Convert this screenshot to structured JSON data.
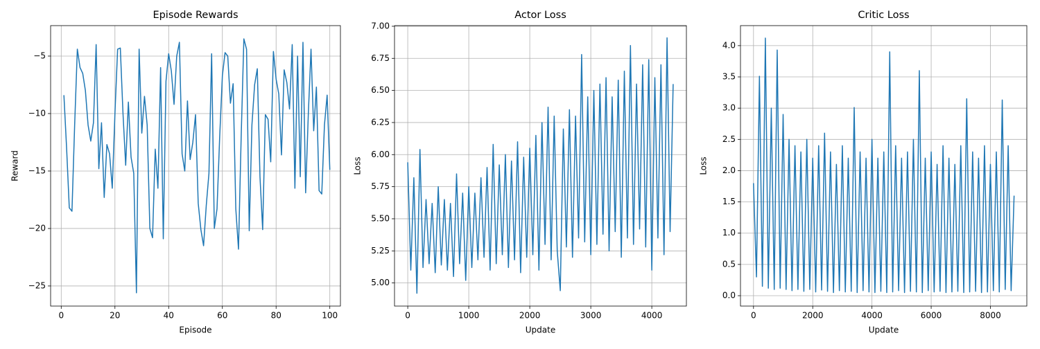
{
  "chart_data": [
    {
      "type": "line",
      "title": "Episode Rewards",
      "x_label": "Episode",
      "y_label": "Reward",
      "color": "#1f77b4",
      "grid": true,
      "x": [
        1,
        2,
        3,
        4,
        5,
        6,
        7,
        8,
        9,
        10,
        11,
        12,
        13,
        14,
        15,
        16,
        17,
        18,
        19,
        20,
        21,
        22,
        23,
        24,
        25,
        26,
        27,
        28,
        29,
        30,
        31,
        32,
        33,
        34,
        35,
        36,
        37,
        38,
        39,
        40,
        41,
        42,
        43,
        44,
        45,
        46,
        47,
        48,
        49,
        50,
        51,
        52,
        53,
        54,
        55,
        56,
        57,
        58,
        59,
        60,
        61,
        62,
        63,
        64,
        65,
        66,
        67,
        68,
        69,
        70,
        71,
        72,
        73,
        74,
        75,
        76,
        77,
        78,
        79,
        80,
        81,
        82,
        83,
        84,
        85,
        86,
        87,
        88,
        89,
        90,
        91,
        92,
        93,
        94,
        95,
        96,
        97,
        98,
        99,
        100
      ],
      "values": [
        -8.4,
        -13,
        -18.2,
        -18.5,
        -11,
        -4.4,
        -6,
        -6.5,
        -8,
        -11,
        -12.4,
        -10.8,
        -4,
        -14.8,
        -10.8,
        -17.3,
        -12.7,
        -13.5,
        -16.5,
        -10,
        -4.4,
        -4.3,
        -10,
        -14.5,
        -9,
        -13.8,
        -15.2,
        -25.6,
        -4.4,
        -11.7,
        -8.5,
        -11,
        -20,
        -20.8,
        -13.1,
        -16.5,
        -6,
        -20.9,
        -7.2,
        -4.8,
        -6.3,
        -9.2,
        -5,
        -3.8,
        -13.5,
        -15,
        -8.9,
        -14,
        -12.5,
        -10.1,
        -17.8,
        -20.1,
        -21.5,
        -18,
        -15.2,
        -4.8,
        -20,
        -18.3,
        -12,
        -6.7,
        -4.7,
        -5,
        -9.1,
        -7.4,
        -18.3,
        -21.8,
        -12,
        -3.5,
        -4.4,
        -20.2,
        -11,
        -7.5,
        -6.1,
        -15.5,
        -20.1,
        -10.1,
        -10.5,
        -14.2,
        -4.6,
        -7,
        -8.3,
        -13.6,
        -6.2,
        -7.3,
        -9.6,
        -4,
        -16.5,
        -5,
        -15.5,
        -3.8,
        -16.9,
        -10,
        -4.4,
        -11.5,
        -7.7,
        -16.7,
        -17,
        -11,
        -8.4,
        -14.9
      ],
      "xlim": [
        -3.95,
        103.95
      ],
      "ylim": [
        -26.75,
        -2.35
      ],
      "xticks": [
        0,
        20,
        40,
        60,
        80,
        100
      ],
      "yticks": [
        {
          "value": -25,
          "label": "−25"
        },
        {
          "value": -20,
          "label": "−20"
        },
        {
          "value": -15,
          "label": "−15"
        },
        {
          "value": -10,
          "label": "−10"
        },
        {
          "value": -5,
          "label": "−5"
        }
      ]
    },
    {
      "type": "line",
      "title": "Actor Loss",
      "x_label": "Update",
      "y_label": "Loss",
      "color": "#1f77b4",
      "grid": true,
      "x": [
        0,
        50,
        100,
        150,
        200,
        250,
        300,
        350,
        400,
        450,
        500,
        550,
        600,
        650,
        700,
        750,
        800,
        850,
        900,
        950,
        1000,
        1050,
        1100,
        1150,
        1200,
        1250,
        1300,
        1350,
        1400,
        1450,
        1500,
        1550,
        1600,
        1650,
        1700,
        1750,
        1800,
        1850,
        1900,
        1950,
        2000,
        2050,
        2100,
        2150,
        2200,
        2250,
        2300,
        2350,
        2400,
        2450,
        2500,
        2550,
        2600,
        2650,
        2700,
        2750,
        2800,
        2850,
        2900,
        2950,
        3000,
        3050,
        3100,
        3150,
        3200,
        3250,
        3300,
        3350,
        3400,
        3450,
        3500,
        3550,
        3600,
        3650,
        3700,
        3750,
        3800,
        3850,
        3900,
        3950,
        4000,
        4050,
        4100,
        4150,
        4200,
        4250,
        4300,
        4350
      ],
      "values": [
        5.94,
        5.1,
        5.82,
        4.92,
        6.04,
        5.12,
        5.65,
        5.15,
        5.62,
        5.08,
        5.75,
        5.14,
        5.65,
        5.1,
        5.62,
        5.05,
        5.85,
        5.15,
        5.7,
        5.02,
        5.75,
        5.12,
        5.7,
        5.18,
        5.82,
        5.2,
        5.9,
        5.1,
        6.08,
        5.15,
        5.92,
        5.22,
        6.0,
        5.12,
        5.95,
        5.18,
        6.1,
        5.08,
        5.98,
        5.2,
        6.05,
        5.22,
        6.15,
        5.1,
        6.25,
        5.3,
        6.37,
        5.18,
        6.3,
        5.25,
        4.94,
        6.2,
        5.28,
        6.35,
        5.2,
        6.3,
        5.35,
        6.78,
        5.32,
        6.45,
        5.22,
        6.5,
        5.3,
        6.55,
        5.38,
        6.6,
        5.25,
        6.45,
        5.4,
        6.58,
        5.2,
        6.65,
        5.35,
        6.85,
        5.3,
        6.55,
        5.42,
        6.7,
        5.28,
        6.74,
        5.1,
        6.6,
        5.35,
        6.7,
        5.22,
        6.91,
        5.4,
        6.55
      ],
      "xlim": [
        -217,
        4567
      ],
      "ylim": [
        4.82,
        7.005
      ],
      "xticks": [
        0,
        1000,
        2000,
        3000,
        4000
      ],
      "yticks": [
        {
          "value": 5,
          "label": "5.00"
        },
        {
          "value": 5.25,
          "label": "5.25"
        },
        {
          "value": 5.5,
          "label": "5.50"
        },
        {
          "value": 5.75,
          "label": "5.75"
        },
        {
          "value": 6,
          "label": "6.00"
        },
        {
          "value": 6.25,
          "label": "6.25"
        },
        {
          "value": 6.5,
          "label": "6.50"
        },
        {
          "value": 6.75,
          "label": "6.75"
        },
        {
          "value": 7,
          "label": "7.00"
        }
      ]
    },
    {
      "type": "line",
      "title": "Critic Loss",
      "x_label": "Update",
      "y_label": "Loss",
      "color": "#1f77b4",
      "grid": true,
      "x": [
        0,
        100,
        200,
        300,
        400,
        500,
        600,
        700,
        800,
        900,
        1000,
        1100,
        1200,
        1300,
        1400,
        1500,
        1600,
        1700,
        1800,
        1900,
        2000,
        2100,
        2200,
        2300,
        2400,
        2500,
        2600,
        2700,
        2800,
        2900,
        3000,
        3100,
        3200,
        3300,
        3400,
        3500,
        3600,
        3700,
        3800,
        3900,
        4000,
        4100,
        4200,
        4300,
        4400,
        4500,
        4600,
        4700,
        4800,
        4900,
        5000,
        5100,
        5200,
        5300,
        5400,
        5500,
        5600,
        5700,
        5800,
        5900,
        6000,
        6100,
        6200,
        6300,
        6400,
        6500,
        6600,
        6700,
        6800,
        6900,
        7000,
        7100,
        7200,
        7300,
        7400,
        7500,
        7600,
        7700,
        7800,
        7900,
        8000,
        8100,
        8200,
        8300,
        8400,
        8500,
        8600,
        8700,
        8800
      ],
      "values": [
        1.8,
        0.3,
        3.51,
        0.15,
        4.12,
        0.12,
        3.0,
        0.1,
        3.93,
        0.12,
        2.9,
        0.1,
        2.5,
        0.08,
        2.4,
        0.1,
        2.3,
        0.07,
        2.5,
        0.1,
        2.2,
        0.06,
        2.4,
        0.09,
        2.6,
        0.07,
        2.3,
        0.05,
        2.1,
        0.08,
        2.4,
        0.06,
        2.2,
        0.07,
        3.01,
        0.05,
        2.3,
        0.08,
        2.2,
        0.06,
        2.5,
        0.05,
        2.2,
        0.07,
        2.3,
        0.05,
        3.9,
        0.06,
        2.4,
        0.08,
        2.2,
        0.05,
        2.3,
        0.07,
        2.5,
        0.06,
        3.6,
        0.05,
        2.2,
        0.08,
        2.3,
        0.06,
        2.1,
        0.07,
        2.4,
        0.05,
        2.2,
        0.06,
        2.1,
        0.07,
        2.4,
        0.05,
        3.15,
        0.06,
        2.3,
        0.07,
        2.2,
        0.05,
        2.4,
        0.06,
        2.1,
        0.08,
        2.3,
        0.06,
        3.13,
        0.1,
        2.4,
        0.08,
        1.6
      ],
      "xlim": [
        -440,
        9230
      ],
      "ylim": [
        -0.166,
        4.32
      ],
      "xticks": [
        0,
        2000,
        4000,
        6000,
        8000
      ],
      "yticks": [
        {
          "value": 0,
          "label": "0.0"
        },
        {
          "value": 0.5,
          "label": "0.5"
        },
        {
          "value": 1,
          "label": "1.0"
        },
        {
          "value": 1.5,
          "label": "1.5"
        },
        {
          "value": 2,
          "label": "2.0"
        },
        {
          "value": 2.5,
          "label": "2.5"
        },
        {
          "value": 3,
          "label": "3.0"
        },
        {
          "value": 3.5,
          "label": "3.5"
        },
        {
          "value": 4,
          "label": "4.0"
        }
      ]
    }
  ]
}
